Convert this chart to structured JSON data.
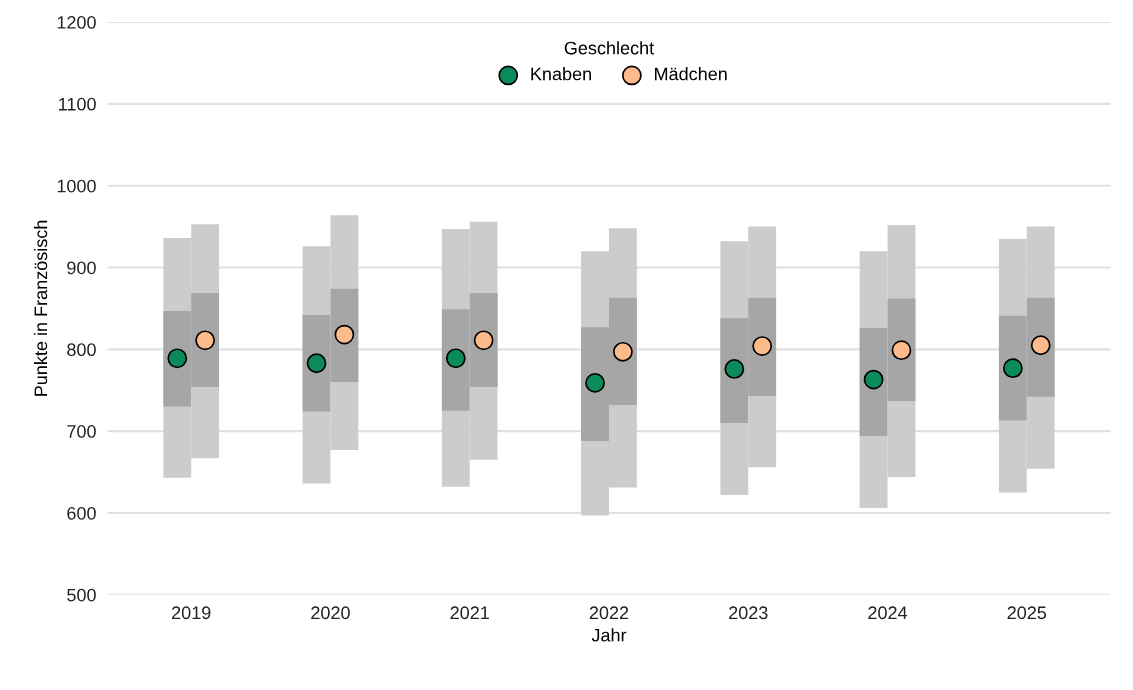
{
  "chart_data": {
    "type": "bar",
    "xlabel": "Jahr",
    "ylabel": "Punkte in Französisch",
    "legend_title": "Geschlecht",
    "legend": "top",
    "categories": [
      "2019",
      "2020",
      "2021",
      "2022",
      "2023",
      "2024",
      "2025"
    ],
    "ylim": [
      500,
      1200
    ],
    "yticks": [
      500,
      600,
      700,
      800,
      900,
      1000,
      1100,
      1200
    ],
    "grid": "y",
    "marker": "circle",
    "series": [
      {
        "color": "#cccccc",
        "base": [
          643,
          636,
          632,
          597,
          622,
          606,
          625
        ],
        "values": [
          293,
          290,
          315,
          323,
          310,
          314,
          310
        ]
      },
      {
        "color": "#a6a6a6",
        "base": [
          730,
          724,
          725,
          688,
          710,
          694,
          713
        ],
        "values": [
          117,
          118,
          124,
          139,
          128,
          132,
          128
        ]
      },
      {
        "color": "#cccccc",
        "base": [
          667,
          677,
          665,
          631,
          656,
          644,
          654
        ],
        "values": [
          286,
          287,
          291,
          317,
          294,
          308,
          296
        ]
      },
      {
        "color": "#a6a6a6",
        "base": [
          754,
          760,
          754,
          732,
          743,
          737,
          742
        ],
        "values": [
          115,
          114,
          115,
          131,
          120,
          125,
          121
        ]
      },
      {
        "type": "scatter",
        "name": "Knaben",
        "color": "#0b8a5a",
        "values": [
          789,
          783,
          789,
          759,
          776,
          763,
          777
        ]
      },
      {
        "type": "scatter",
        "name": "Mädchen",
        "color": "#fdbb8c",
        "values": [
          811,
          818,
          811,
          797,
          804,
          799,
          805
        ]
      }
    ]
  }
}
